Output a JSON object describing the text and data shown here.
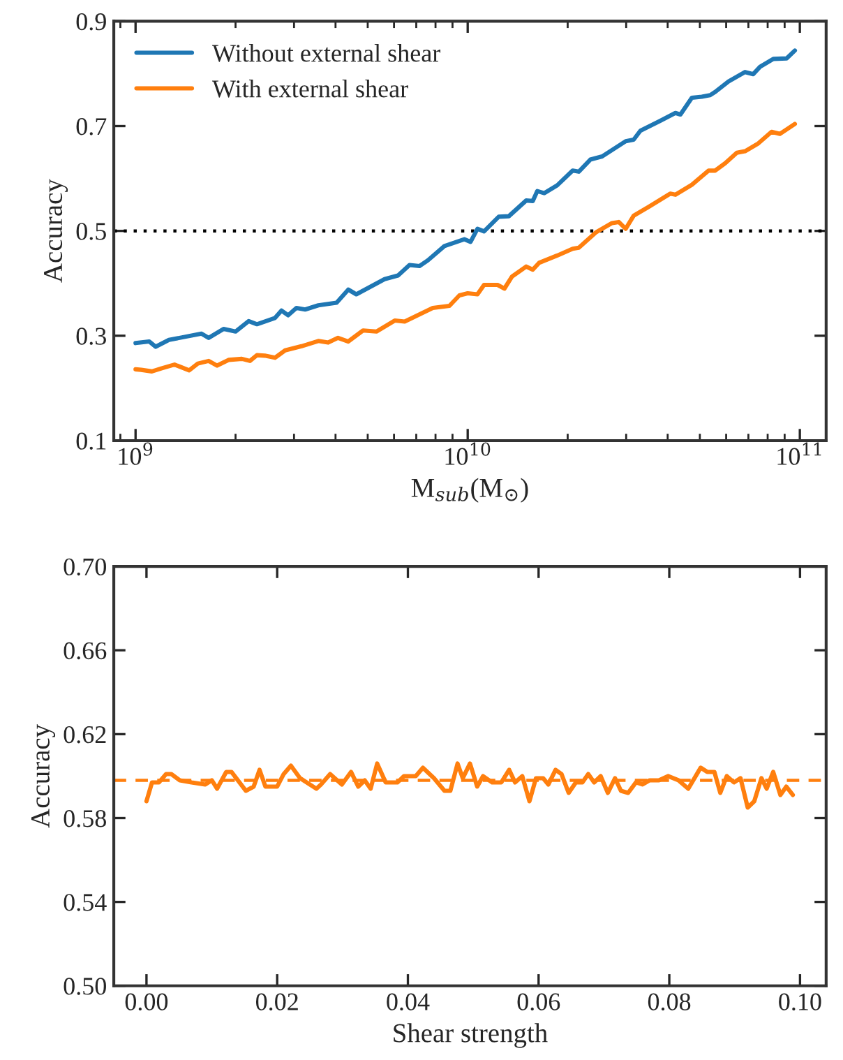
{
  "chart_data": [
    {
      "type": "line",
      "ylabel": "Accuracy",
      "xlabel": "M$_{sub}$(M$_{⊙}$)",
      "log": "x",
      "legend": "top left",
      "grid": false,
      "xlim": [
        860000000.0,
        120000000000.0
      ],
      "ylim": [
        0.1,
        0.9
      ],
      "yticks": [
        0.1,
        0.3,
        0.5,
        0.7,
        0.9
      ],
      "xticks": [
        {
          "value": 1000000000.0,
          "label": "10$^{9}$"
        },
        {
          "value": 10000000000.0,
          "label": "10$^{10}$"
        },
        {
          "value": 100000000000.0,
          "label": "10$^{11}$"
        }
      ],
      "ref_lines": [
        {
          "axis": "y",
          "value": 0.5,
          "color": "#000000",
          "line_style": "dotted"
        }
      ],
      "series": [
        {
          "name": "Without external shear",
          "color": "#1f77b4",
          "x": [
            1000000000.0,
            1100000000.0,
            1150000000.0,
            1260000000.0,
            1580000000.0,
            1660000000.0,
            1840000000.0,
            2000000000.0,
            2190000000.0,
            2320000000.0,
            2630000000.0,
            2750000000.0,
            2880000000.0,
            3050000000.0,
            3240000000.0,
            3550000000.0,
            4030000000.0,
            4370000000.0,
            4620000000.0,
            5620000000.0,
            6170000000.0,
            6680000000.0,
            7160000000.0,
            7590000000.0,
            8510000000.0,
            9770000000.0,
            10200000000.0,
            10700000000.0,
            11200000000.0,
            12400000000.0,
            13300000000.0,
            15000000000.0,
            15700000000.0,
            16200000000.0,
            17000000000.0,
            18600000000.0,
            20700000000.0,
            21600000000.0,
            23400000000.0,
            25400000000.0,
            29900000000.0,
            31600000000.0,
            33100000000.0,
            38000000000.0,
            42200000000.0,
            43700000000.0,
            47300000000.0,
            50700000000.0,
            53700000000.0,
            55600000000.0,
            61000000000.0,
            68400000000.0,
            72400000000.0,
            75900000000.0,
            83200000000.0,
            91200000000.0,
            96600000000.0
          ],
          "values": [
            0.286,
            0.289,
            0.279,
            0.292,
            0.304,
            0.296,
            0.313,
            0.308,
            0.328,
            0.322,
            0.334,
            0.348,
            0.339,
            0.353,
            0.35,
            0.358,
            0.363,
            0.388,
            0.379,
            0.408,
            0.415,
            0.435,
            0.433,
            0.444,
            0.471,
            0.484,
            0.479,
            0.504,
            0.499,
            0.527,
            0.528,
            0.558,
            0.557,
            0.576,
            0.572,
            0.587,
            0.615,
            0.613,
            0.636,
            0.642,
            0.671,
            0.674,
            0.691,
            0.71,
            0.725,
            0.722,
            0.754,
            0.756,
            0.759,
            0.765,
            0.785,
            0.803,
            0.799,
            0.813,
            0.828,
            0.829,
            0.844
          ]
        },
        {
          "name": "With external shear",
          "color": "#ff7f0e",
          "x": [
            1000000000.0,
            1040000000.0,
            1120000000.0,
            1200000000.0,
            1310000000.0,
            1450000000.0,
            1540000000.0,
            1660000000.0,
            1760000000.0,
            1910000000.0,
            2090000000.0,
            2210000000.0,
            2320000000.0,
            2450000000.0,
            2630000000.0,
            2820000000.0,
            3160000000.0,
            3550000000.0,
            3800000000.0,
            4070000000.0,
            4370000000.0,
            4840000000.0,
            5310000000.0,
            6030000000.0,
            6460000000.0,
            7850000000.0,
            8810000000.0,
            9440000000.0,
            10000000000.0,
            10700000000.0,
            11200000000.0,
            12300000000.0,
            12900000000.0,
            13600000000.0,
            15000000000.0,
            15700000000.0,
            16400000000.0,
            18600000000.0,
            20700000000.0,
            21600000000.0,
            24300000000.0,
            27200000000.0,
            28500000000.0,
            29900000000.0,
            31600000000.0,
            35100000000.0,
            40700000000.0,
            42200000000.0,
            47300000000.0,
            53100000000.0,
            55600000000.0,
            59600000000.0,
            64600000000.0,
            68400000000.0,
            75000000000.0,
            82200000000.0,
            87100000000.0,
            96600000000.0
          ],
          "values": [
            0.236,
            0.235,
            0.232,
            0.238,
            0.245,
            0.234,
            0.247,
            0.252,
            0.243,
            0.254,
            0.256,
            0.252,
            0.263,
            0.262,
            0.258,
            0.272,
            0.28,
            0.29,
            0.287,
            0.296,
            0.289,
            0.31,
            0.308,
            0.329,
            0.327,
            0.353,
            0.357,
            0.377,
            0.381,
            0.379,
            0.397,
            0.397,
            0.39,
            0.413,
            0.432,
            0.426,
            0.439,
            0.453,
            0.466,
            0.468,
            0.497,
            0.515,
            0.517,
            0.504,
            0.529,
            0.546,
            0.571,
            0.569,
            0.588,
            0.615,
            0.615,
            0.629,
            0.649,
            0.652,
            0.667,
            0.689,
            0.685,
            0.704
          ]
        }
      ]
    },
    {
      "type": "line",
      "ylabel": "Accuracy",
      "xlabel": "Shear strength",
      "grid": false,
      "xlim": [
        -0.005,
        0.104
      ],
      "ylim": [
        0.5,
        0.7
      ],
      "xticks": [
        {
          "value": 0,
          "label": "0.00"
        },
        {
          "value": 0.02,
          "label": "0.02"
        },
        {
          "value": 0.04,
          "label": "0.04"
        },
        {
          "value": 0.06,
          "label": "0.06"
        },
        {
          "value": 0.08,
          "label": "0.08"
        },
        {
          "value": 0.1,
          "label": "0.10"
        }
      ],
      "yticks": [
        {
          "value": 0.5,
          "label": "0.50"
        },
        {
          "value": 0.54,
          "label": "0.54"
        },
        {
          "value": 0.58,
          "label": "0.58"
        },
        {
          "value": 0.62,
          "label": "0.62"
        },
        {
          "value": 0.66,
          "label": "0.66"
        },
        {
          "value": 0.7,
          "label": "0.70"
        }
      ],
      "ref_lines": [
        {
          "axis": "y",
          "value": 0.598,
          "color": "#ff7f0e",
          "line_style": "dashed"
        }
      ],
      "series": [
        {
          "color": "#ff7f0e",
          "x": [
            0,
            0.00085,
            0.0019,
            0.003,
            0.0038,
            0.0051,
            0.0069,
            0.009,
            0.01,
            0.0108,
            0.0122,
            0.013,
            0.0152,
            0.0164,
            0.0173,
            0.0182,
            0.02,
            0.021,
            0.0221,
            0.0235,
            0.026,
            0.0267,
            0.0281,
            0.0299,
            0.0313,
            0.0324,
            0.0334,
            0.0343,
            0.0353,
            0.0366,
            0.0384,
            0.0394,
            0.0412,
            0.0423,
            0.044,
            0.0456,
            0.0465,
            0.0476,
            0.0484,
            0.0495,
            0.0506,
            0.0515,
            0.0529,
            0.0543,
            0.0555,
            0.0564,
            0.0575,
            0.0586,
            0.0596,
            0.0607,
            0.0615,
            0.0626,
            0.0635,
            0.0646,
            0.0657,
            0.0667,
            0.0676,
            0.0685,
            0.0695,
            0.0706,
            0.0717,
            0.0726,
            0.0737,
            0.0749,
            0.0759,
            0.077,
            0.0784,
            0.0798,
            0.0814,
            0.0829,
            0.0848,
            0.0858,
            0.0869,
            0.0878,
            0.0888,
            0.0899,
            0.0909,
            0.092,
            0.093,
            0.0941,
            0.0949,
            0.0959,
            0.097,
            0.0979,
            0.0989
          ],
          "values": [
            0.588,
            0.597,
            0.597,
            0.601,
            0.601,
            0.598,
            0.597,
            0.596,
            0.598,
            0.594,
            0.602,
            0.602,
            0.593,
            0.595,
            0.603,
            0.595,
            0.595,
            0.601,
            0.605,
            0.599,
            0.594,
            0.596,
            0.601,
            0.596,
            0.602,
            0.595,
            0.598,
            0.594,
            0.606,
            0.597,
            0.597,
            0.6,
            0.6,
            0.604,
            0.599,
            0.593,
            0.593,
            0.606,
            0.599,
            0.606,
            0.595,
            0.6,
            0.597,
            0.597,
            0.603,
            0.597,
            0.6,
            0.588,
            0.599,
            0.599,
            0.596,
            0.603,
            0.601,
            0.592,
            0.597,
            0.597,
            0.601,
            0.597,
            0.6,
            0.592,
            0.599,
            0.593,
            0.592,
            0.597,
            0.596,
            0.598,
            0.598,
            0.6,
            0.598,
            0.594,
            0.604,
            0.602,
            0.602,
            0.592,
            0.6,
            0.597,
            0.599,
            0.585,
            0.588,
            0.599,
            0.594,
            0.602,
            0.591,
            0.595,
            0.591
          ]
        }
      ]
    }
  ]
}
